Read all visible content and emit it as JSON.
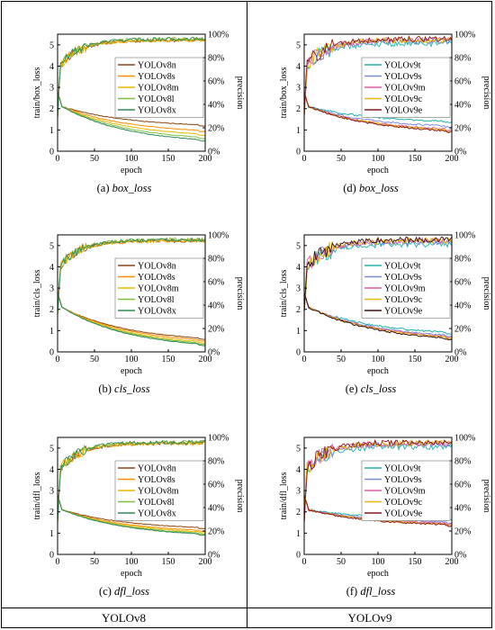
{
  "columns": [
    {
      "label": "YOLOv8"
    },
    {
      "label": "YOLOv9"
    }
  ],
  "chart_data": [
    {
      "type": "line",
      "id": "a",
      "caption_prefix": "(a)",
      "caption_name": "box_loss",
      "xlabel": "epoch",
      "ylabel": "train/box_loss",
      "y2label": "precision",
      "xlim": [
        0,
        200
      ],
      "ylim": [
        0,
        5.5
      ],
      "y2lim": [
        0,
        100
      ],
      "xticks": [
        0,
        50,
        100,
        150,
        200
      ],
      "yticks": [
        0,
        1,
        2,
        3,
        4,
        5
      ],
      "y2ticks": [
        "0%",
        "20%",
        "40%",
        "60%",
        "80%",
        "100%"
      ],
      "legend_position": "center-right",
      "series": [
        {
          "name": "YOLOv8n",
          "color": "#8B4513",
          "loss_end": 1.12,
          "prec_end": 95
        },
        {
          "name": "YOLOv8s",
          "color": "#FF8C00",
          "loss_end": 0.82,
          "prec_end": 95
        },
        {
          "name": "YOLOv8m",
          "color": "#E8B800",
          "loss_end": 0.62,
          "prec_end": 95
        },
        {
          "name": "YOLOv8l",
          "color": "#7FBF3F",
          "loss_end": 0.45,
          "prec_end": 96
        },
        {
          "name": "YOLOv8x",
          "color": "#2E8B57",
          "loss_end": 0.32,
          "prec_end": 96
        }
      ]
    },
    {
      "type": "line",
      "id": "b",
      "caption_prefix": "(b)",
      "caption_name": "cls_loss",
      "xlabel": "epoch",
      "ylabel": "train/cls_loss",
      "y2label": "precision",
      "xlim": [
        0,
        200
      ],
      "ylim": [
        0,
        5.5
      ],
      "y2lim": [
        0,
        100
      ],
      "xticks": [
        0,
        50,
        100,
        150,
        200
      ],
      "yticks": [
        0,
        1,
        2,
        3,
        4,
        5
      ],
      "y2ticks": [
        "0%",
        "20%",
        "40%",
        "60%",
        "80%",
        "100%"
      ],
      "legend_position": "center-right",
      "series": [
        {
          "name": "YOLOv8n",
          "color": "#8B4513",
          "loss_end": 0.45,
          "prec_end": 95
        },
        {
          "name": "YOLOv8s",
          "color": "#FF8C00",
          "loss_end": 0.35,
          "prec_end": 95
        },
        {
          "name": "YOLOv8m",
          "color": "#E8B800",
          "loss_end": 0.25,
          "prec_end": 95
        },
        {
          "name": "YOLOv8l",
          "color": "#7FBF3F",
          "loss_end": 0.18,
          "prec_end": 96
        },
        {
          "name": "YOLOv8x",
          "color": "#2E8B57",
          "loss_end": 0.12,
          "prec_end": 96
        }
      ]
    },
    {
      "type": "line",
      "id": "c",
      "caption_prefix": "(c)",
      "caption_name": "dfl_loss",
      "xlabel": "epoch",
      "ylabel": "train/dfl_loss",
      "y2label": "precision",
      "xlim": [
        0,
        200
      ],
      "ylim": [
        0,
        5.5
      ],
      "y2lim": [
        0,
        100
      ],
      "xticks": [
        0,
        50,
        100,
        150,
        200
      ],
      "yticks": [
        0,
        1,
        2,
        3,
        4,
        5
      ],
      "y2ticks": [
        "0%",
        "20%",
        "40%",
        "60%",
        "80%",
        "100%"
      ],
      "legend_position": "center-right",
      "series": [
        {
          "name": "YOLOv8n",
          "color": "#8B4513",
          "loss_end": 1.15,
          "prec_end": 95
        },
        {
          "name": "YOLOv8s",
          "color": "#FF8C00",
          "loss_end": 1.0,
          "prec_end": 95
        },
        {
          "name": "YOLOv8m",
          "color": "#E8B800",
          "loss_end": 0.92,
          "prec_end": 95
        },
        {
          "name": "YOLOv8l",
          "color": "#7FBF3F",
          "loss_end": 0.85,
          "prec_end": 96
        },
        {
          "name": "YOLOv8x",
          "color": "#2E8B57",
          "loss_end": 0.8,
          "prec_end": 96
        }
      ]
    },
    {
      "type": "line",
      "id": "d",
      "caption_prefix": "(d)",
      "caption_name": "box_loss",
      "xlabel": "epoch",
      "ylabel": "train/box_loss",
      "y2label": "precision",
      "xlim": [
        0,
        200
      ],
      "ylim": [
        0,
        5.5
      ],
      "y2lim": [
        0,
        100
      ],
      "xticks": [
        0,
        50,
        100,
        150,
        200
      ],
      "yticks": [
        0,
        1,
        2,
        3,
        4,
        5
      ],
      "y2ticks": [
        "0%",
        "20%",
        "40%",
        "60%",
        "80%",
        "100%"
      ],
      "legend_position": "center-right",
      "series": [
        {
          "name": "YOLOv9t",
          "color": "#20B2AA",
          "loss_end": 1.3,
          "prec_end": 92
        },
        {
          "name": "YOLOv9s",
          "color": "#7B8CDE",
          "loss_end": 1.05,
          "prec_end": 94
        },
        {
          "name": "YOLOv9m",
          "color": "#E05AA0",
          "loss_end": 0.9,
          "prec_end": 95
        },
        {
          "name": "YOLOv9c",
          "color": "#E8B800",
          "loss_end": 0.85,
          "prec_end": 95
        },
        {
          "name": "YOLOv9e",
          "color": "#8B1A1A",
          "loss_end": 0.8,
          "prec_end": 96
        }
      ]
    },
    {
      "type": "line",
      "id": "e",
      "caption_prefix": "(e)",
      "caption_name": "cls_loss",
      "xlabel": "epoch",
      "ylabel": "train/cls_loss",
      "y2label": "precision",
      "xlim": [
        0,
        200
      ],
      "ylim": [
        0,
        5.5
      ],
      "y2lim": [
        0,
        100
      ],
      "xticks": [
        0,
        50,
        100,
        150,
        200
      ],
      "yticks": [
        0,
        1,
        2,
        3,
        4,
        5
      ],
      "y2ticks": [
        "0%",
        "20%",
        "40%",
        "60%",
        "80%",
        "100%"
      ],
      "legend_position": "center-right",
      "series": [
        {
          "name": "YOLOv9t",
          "color": "#20B2AA",
          "loss_end": 0.75,
          "prec_end": 92
        },
        {
          "name": "YOLOv9s",
          "color": "#7B8CDE",
          "loss_end": 0.6,
          "prec_end": 94
        },
        {
          "name": "YOLOv9m",
          "color": "#E05AA0",
          "loss_end": 0.55,
          "prec_end": 95
        },
        {
          "name": "YOLOv9c",
          "color": "#E8B800",
          "loss_end": 0.5,
          "prec_end": 95
        },
        {
          "name": "YOLOv9e",
          "color": "#3A1010",
          "loss_end": 0.45,
          "prec_end": 96
        }
      ]
    },
    {
      "type": "line",
      "id": "f",
      "caption_prefix": "(f)",
      "caption_name": "dfl_loss",
      "xlabel": "epoch",
      "ylabel": "train/dfl_loss",
      "y2label": "precision",
      "xlim": [
        0,
        200
      ],
      "ylim": [
        0,
        5.5
      ],
      "y2lim": [
        0,
        100
      ],
      "xticks": [
        0,
        50,
        100,
        150,
        200
      ],
      "yticks": [
        0,
        1,
        2,
        3,
        4,
        5
      ],
      "y2ticks": [
        "0%",
        "20%",
        "40%",
        "60%",
        "80%",
        "100%"
      ],
      "legend_position": "center-right",
      "series": [
        {
          "name": "YOLOv9t",
          "color": "#20B2AA",
          "loss_end": 1.6,
          "prec_end": 92
        },
        {
          "name": "YOLOv9s",
          "color": "#7B8CDE",
          "loss_end": 1.45,
          "prec_end": 94
        },
        {
          "name": "YOLOv9m",
          "color": "#E05AA0",
          "loss_end": 1.38,
          "prec_end": 95
        },
        {
          "name": "YOLOv9c",
          "color": "#E8B800",
          "loss_end": 1.33,
          "prec_end": 95
        },
        {
          "name": "YOLOv9e",
          "color": "#8B1A1A",
          "loss_end": 1.3,
          "prec_end": 96
        }
      ]
    }
  ]
}
